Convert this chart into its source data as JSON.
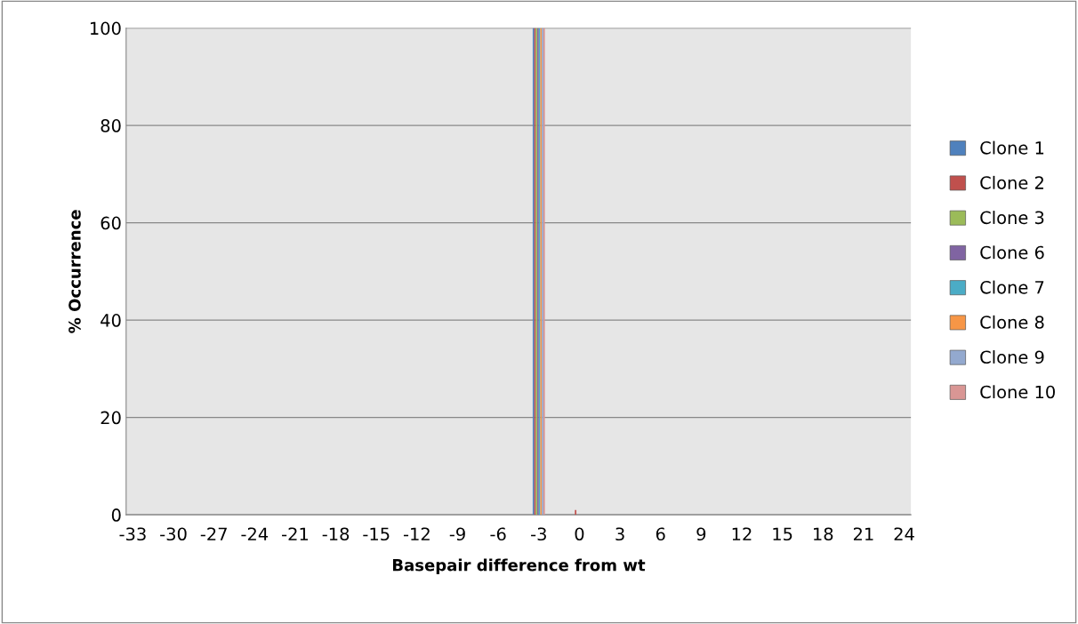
{
  "chart_data": {
    "type": "bar",
    "xlabel": "Basepair difference from wt",
    "ylabel": "% Occurrence",
    "categories": [
      "-33",
      null,
      null,
      "-30",
      null,
      null,
      "-27",
      null,
      null,
      "-24",
      null,
      null,
      "-21",
      null,
      null,
      "-18",
      null,
      null,
      "-15",
      null,
      null,
      "-12",
      null,
      null,
      "-9",
      null,
      null,
      "-6",
      null,
      null,
      "-3",
      null,
      null,
      "0",
      null,
      null,
      "3",
      null,
      null,
      "6",
      null,
      null,
      "9",
      null,
      null,
      "12",
      null,
      null,
      "15",
      null,
      null,
      "18",
      null,
      null,
      "21",
      null,
      null,
      "24"
    ],
    "series": [
      {
        "name": "Clone 1",
        "color": "#4f81bd",
        "values": [
          0,
          0,
          0,
          0,
          0,
          0,
          0,
          0,
          0,
          0,
          0,
          0,
          0,
          0,
          0,
          0,
          0,
          0,
          0,
          0,
          0,
          0,
          0,
          0,
          0,
          0,
          0,
          0,
          0,
          0,
          100,
          0,
          0,
          0,
          0,
          0,
          0,
          0,
          0,
          0,
          0,
          0,
          0,
          0,
          0,
          0,
          0,
          0,
          0,
          0,
          0,
          0,
          0,
          0,
          0,
          0,
          0,
          0
        ]
      },
      {
        "name": "Clone 2",
        "color": "#c0504d",
        "values": [
          0,
          0,
          0,
          0,
          0,
          0,
          0,
          0,
          0,
          0,
          0,
          0,
          0,
          0,
          0,
          0,
          0,
          0,
          0,
          0,
          0,
          0,
          0,
          0,
          0,
          0,
          0,
          0,
          0,
          0,
          100,
          0,
          0,
          1,
          0,
          0,
          0,
          0,
          0,
          0,
          0,
          0,
          0,
          0,
          0,
          0,
          0,
          0,
          0,
          0,
          0,
          0,
          0,
          0,
          0,
          0,
          0,
          0
        ]
      },
      {
        "name": "Clone 3",
        "color": "#9bbb59",
        "values": [
          0,
          0,
          0,
          0,
          0,
          0,
          0,
          0,
          0,
          0,
          0,
          0,
          0,
          0,
          0,
          0,
          0,
          0,
          0,
          0,
          0,
          0,
          0,
          0,
          0,
          0,
          0,
          0,
          0,
          0,
          100,
          0,
          0,
          0,
          0,
          0,
          0,
          0,
          0,
          0,
          0,
          0,
          0,
          0,
          0,
          0,
          0,
          0,
          0,
          0,
          0,
          0,
          0,
          0,
          0,
          0,
          0,
          0
        ]
      },
      {
        "name": "Clone 6",
        "color": "#8064a2",
        "values": [
          0,
          0,
          0,
          0,
          0,
          0,
          0,
          0,
          0,
          0,
          0,
          0,
          0,
          0,
          0,
          0,
          0,
          0,
          0,
          0,
          0,
          0,
          0,
          0,
          0,
          0,
          0,
          0,
          0,
          0,
          100,
          0,
          0,
          0,
          0,
          0,
          0,
          0,
          0,
          0,
          0,
          0,
          0,
          0,
          0,
          0,
          0,
          0,
          0,
          0,
          0,
          0,
          0,
          0,
          0,
          0,
          0,
          0
        ]
      },
      {
        "name": "Clone 7",
        "color": "#4bacc6",
        "values": [
          0,
          0,
          0,
          0,
          0,
          0,
          0,
          0,
          0,
          0,
          0,
          0,
          0,
          0,
          0,
          0,
          0,
          0,
          0,
          0,
          0,
          0,
          0,
          0,
          0,
          0,
          0,
          0,
          0,
          0,
          100,
          0,
          0,
          0,
          0,
          0,
          0,
          0,
          0,
          0,
          0,
          0,
          0,
          0,
          0,
          0,
          0,
          0,
          0,
          0,
          0,
          0,
          0,
          0,
          0,
          0,
          0,
          0
        ]
      },
      {
        "name": "Clone 8",
        "color": "#f79646",
        "values": [
          0,
          0,
          0,
          0,
          0,
          0,
          0,
          0,
          0,
          0,
          0,
          0,
          0,
          0,
          0,
          0,
          0,
          0,
          0,
          0,
          0,
          0,
          0,
          0,
          0,
          0,
          0,
          0,
          0,
          0,
          100,
          0,
          0,
          0,
          0,
          0,
          0,
          0,
          0,
          0,
          0,
          0,
          0,
          0,
          0,
          0,
          0,
          0,
          0,
          0,
          0,
          0,
          0,
          0,
          0,
          0,
          0,
          0
        ]
      },
      {
        "name": "Clone 9",
        "color": "#93a9cf",
        "values": [
          0,
          0,
          0,
          0,
          0,
          0,
          0,
          0,
          0,
          0,
          0,
          0,
          0,
          0,
          0,
          0,
          0,
          0,
          0,
          0,
          0,
          0,
          0,
          0,
          0,
          0,
          0,
          0,
          0,
          0,
          100,
          0,
          0,
          0,
          0,
          0,
          0,
          0,
          0,
          0,
          0,
          0,
          0,
          0,
          0,
          0,
          0,
          0,
          0,
          0,
          0,
          0,
          0,
          0,
          0,
          0,
          0,
          0
        ]
      },
      {
        "name": "Clone 10",
        "color": "#d99694",
        "values": [
          0,
          0,
          0,
          0,
          0,
          0,
          0,
          0,
          0,
          0,
          0,
          0,
          0,
          0,
          0,
          0,
          0,
          0,
          0,
          0,
          0,
          0,
          0,
          0,
          0,
          0,
          0,
          0,
          0,
          0,
          100,
          0,
          0,
          0,
          0,
          0,
          0,
          0,
          0,
          0,
          0,
          0,
          0,
          0,
          0,
          0,
          0,
          0,
          0,
          0,
          0,
          0,
          0,
          0,
          0,
          0,
          0,
          0
        ]
      }
    ],
    "ylim": [
      0,
      100
    ],
    "yticks": [
      0,
      20,
      40,
      60,
      80,
      100
    ],
    "grid": "y",
    "legend": "right"
  }
}
